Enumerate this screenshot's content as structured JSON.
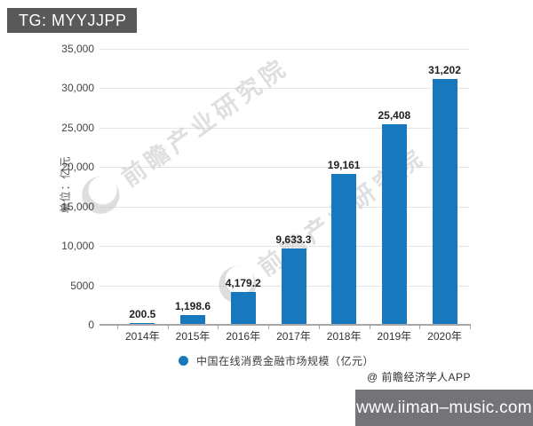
{
  "badge": {
    "text": "TG: MYYJJPP"
  },
  "watermark": {
    "text": "前瞻产业研究院"
  },
  "chart_data": {
    "type": "bar",
    "title": "",
    "categories": [
      "2014年",
      "2015年",
      "2016年",
      "2017年",
      "2018年",
      "2019年",
      "2020年"
    ],
    "values": [
      200.5,
      1198.6,
      4179.2,
      9633.3,
      19161,
      25408,
      31202
    ],
    "value_labels": [
      "200.5",
      "1,198.6",
      "4,179.2",
      "9,633.3",
      "19,161",
      "25,408",
      "31,202"
    ],
    "legend": [
      "中国在线消费金融市场规模（亿元）"
    ],
    "xlabel": "",
    "ylabel": "单位：亿元",
    "ylim": [
      0,
      35000
    ],
    "ytick_labels": [
      "35,000",
      "30,000",
      "25,000",
      "20,000",
      "15,000",
      "10,000",
      "5000",
      "0"
    ],
    "grid": true,
    "legend_position": "bottom",
    "bar_color": "#1878bd"
  },
  "footer": {
    "credit": "@ 前瞻经济学人APP",
    "site": "www.iiman–music.com"
  },
  "colors": {
    "bar": "#1878bd",
    "badge_bg": "#59595b",
    "site_bg": "#747478",
    "gridline": "#e4e4e4",
    "axis": "#a8a8a8"
  }
}
